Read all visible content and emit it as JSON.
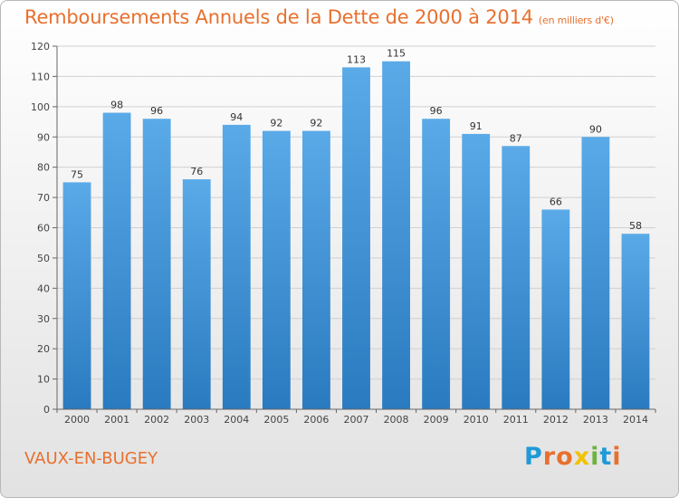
{
  "chart_data": {
    "type": "bar",
    "title": "Remboursements Annuels de la Dette de 2000 à 2014",
    "unit_note": "(en milliers d'€)",
    "categories": [
      "2000",
      "2001",
      "2002",
      "2003",
      "2004",
      "2005",
      "2006",
      "2007",
      "2008",
      "2009",
      "2010",
      "2011",
      "2012",
      "2013",
      "2014"
    ],
    "values": [
      75,
      98,
      96,
      76,
      94,
      92,
      92,
      113,
      115,
      96,
      91,
      87,
      66,
      90,
      58
    ],
    "ylim": [
      0,
      120
    ],
    "yticks": [
      "0",
      "10",
      "20",
      "30",
      "40",
      "50",
      "60",
      "70",
      "80",
      "90",
      "100",
      "110",
      "120"
    ],
    "grid": true,
    "bar_colors": {
      "top": "#5aaae8",
      "bottom": "#2a7ac0"
    }
  },
  "footer": {
    "commune": "VAUX-EN-BUGEY",
    "logo_text": "Proxiti",
    "logo_colors": [
      "#1f9ad8",
      "#e8702e",
      "#e8702e",
      "#f2c200",
      "#6cb33f",
      "#1f9ad8",
      "#e8702e"
    ]
  }
}
